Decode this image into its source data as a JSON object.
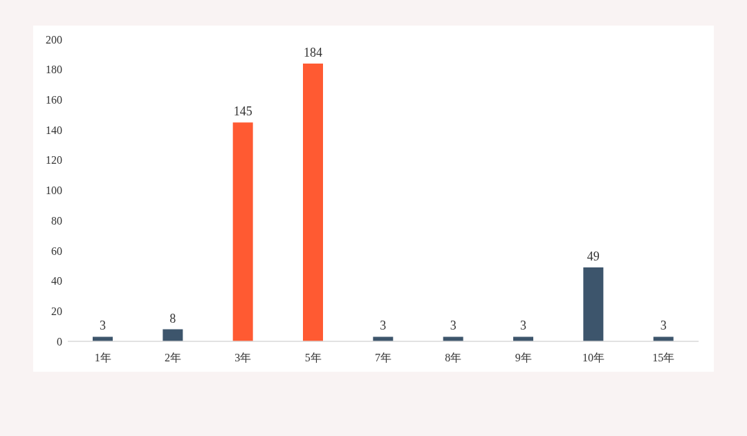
{
  "chart_data": {
    "type": "bar",
    "categories": [
      "1年",
      "2年",
      "3年",
      "5年",
      "7年",
      "8年",
      "9年",
      "10年",
      "15年"
    ],
    "values": [
      3,
      8,
      145,
      184,
      3,
      3,
      3,
      49,
      3
    ],
    "colors": [
      "#3d556c",
      "#3d556c",
      "#ff5a32",
      "#ff5a32",
      "#3d556c",
      "#3d556c",
      "#3d556c",
      "#3d556c",
      "#3d556c"
    ],
    "ylim": [
      0,
      200
    ],
    "yticks": [
      0,
      20,
      40,
      60,
      80,
      100,
      120,
      140,
      160,
      180,
      200
    ],
    "data_labels": true
  }
}
